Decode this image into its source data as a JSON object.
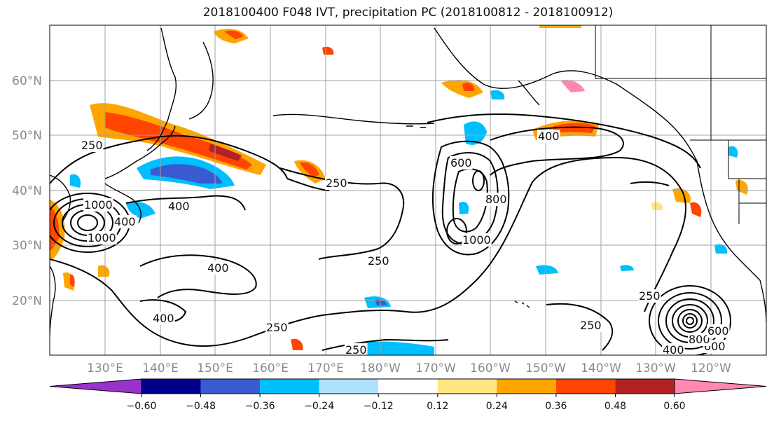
{
  "title": "2018100400 F048 IVT, precipitation PC (2018100812 - 2018100912)",
  "lat_labels": [
    "60°N",
    "50°N",
    "40°N",
    "30°N",
    "20°N"
  ],
  "lon_labels": [
    "130°E",
    "140°E",
    "150°E",
    "160°E",
    "170°E",
    "180°W",
    "170°W",
    "160°W",
    "150°W",
    "140°W",
    "130°W",
    "120°W"
  ],
  "colorbar": {
    "ticks": [
      "−0.60",
      "−0.48",
      "−0.36",
      "−0.24",
      "−0.12",
      "0.12",
      "0.24",
      "0.36",
      "0.48",
      "0.60"
    ],
    "colors": [
      "#9932cc",
      "#00008b",
      "#3a5bd0",
      "#00bfff",
      "#b0e2ff",
      "#ffffff",
      "#ffe680",
      "#ffa500",
      "#ff4500",
      "#b22222",
      "#ff88b0"
    ]
  },
  "contour_labels": [
    "250",
    "250",
    "250",
    "250",
    "250",
    "250",
    "250",
    "400",
    "400",
    "400",
    "400",
    "400",
    "600",
    "600",
    "800",
    "800",
    "1000",
    "1000",
    "1000",
    "400",
    "600"
  ],
  "colors": {
    "contour": "#000000",
    "grid": "#a0a0a0",
    "coast": "#000000"
  }
}
